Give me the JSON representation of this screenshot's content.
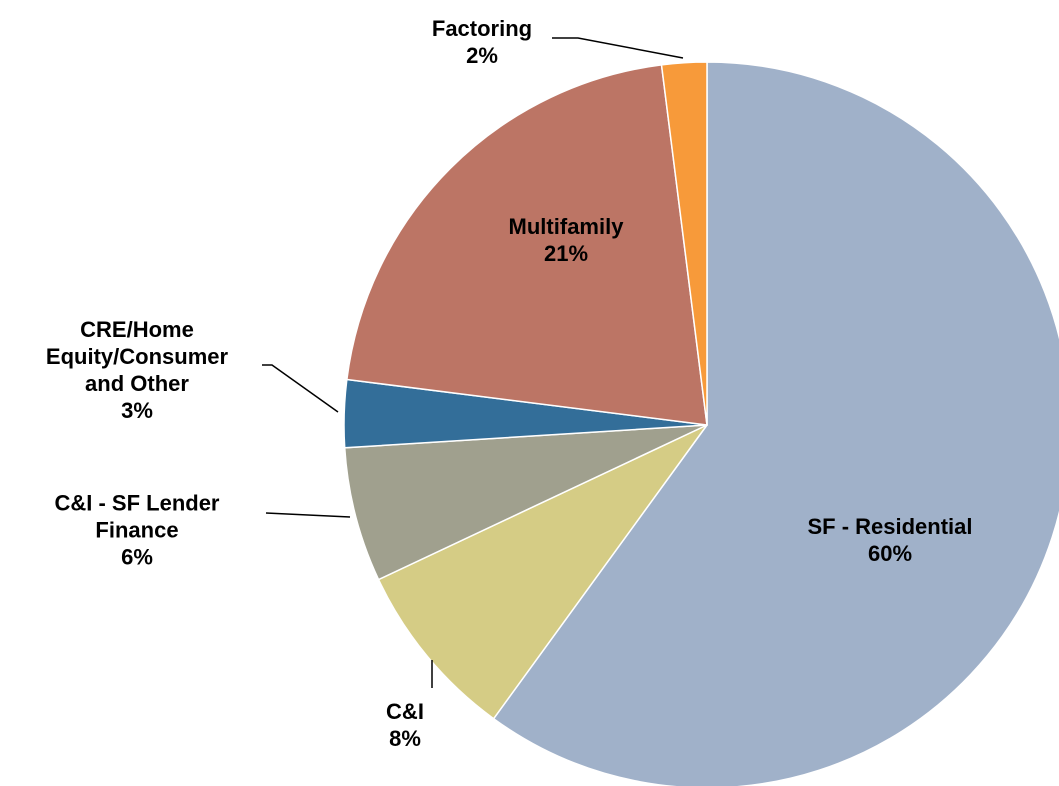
{
  "chart_data": {
    "type": "pie",
    "categories": [
      "SF - Residential",
      "C&I",
      "C&I - SF Lender Finance",
      "CRE/Home Equity/Consumer and Other",
      "Multifamily",
      "Factoring"
    ],
    "values": [
      60,
      8,
      6,
      3,
      21,
      2
    ],
    "value_labels": [
      "60%",
      "8%",
      "6%",
      "3%",
      "21%",
      "2%"
    ],
    "colors": [
      "#a0b1c9",
      "#d5cc85",
      "#a0a08e",
      "#336e99",
      "#bc7565",
      "#f79a3a"
    ]
  }
}
